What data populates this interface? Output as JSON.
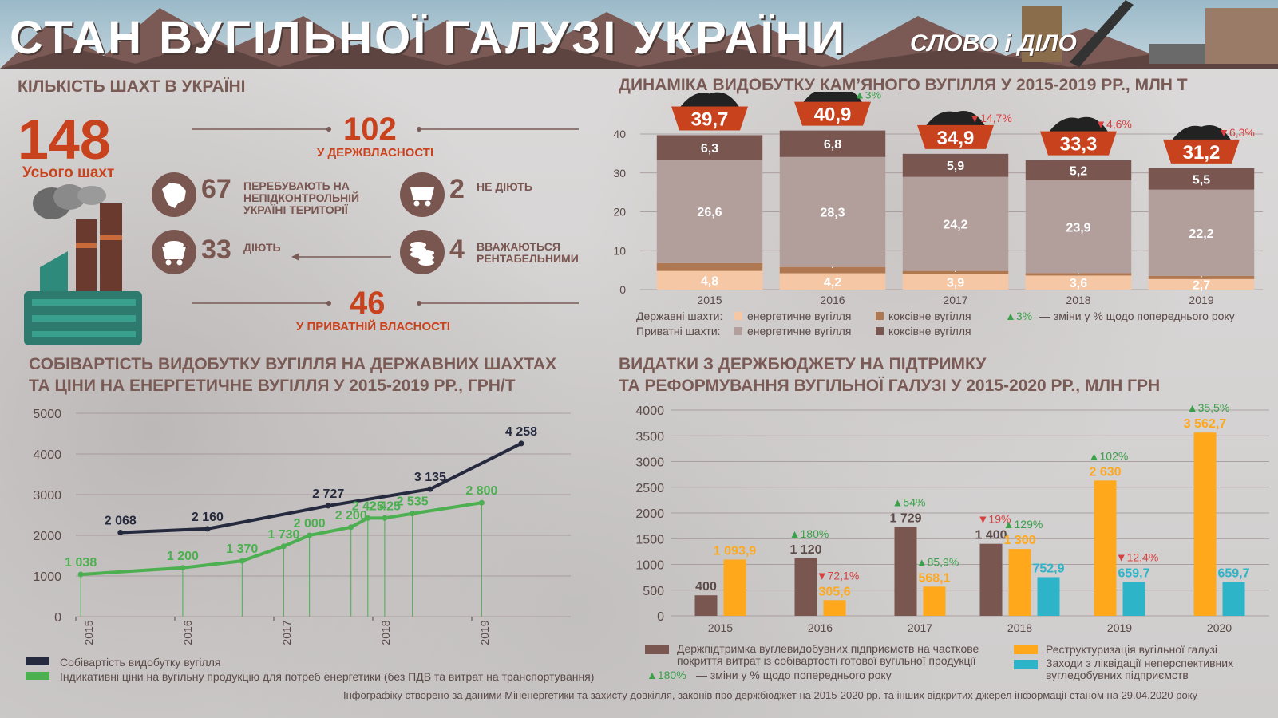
{
  "header": {
    "title": "СТАН ВУГІЛЬНОЇ ГАЛУЗІ УКРАЇНИ",
    "logo": "СЛОВО і ДІЛО"
  },
  "mines": {
    "section_title": "КІЛЬКІСТЬ ШАХТ В УКРАЇНІ",
    "total_value": "148",
    "total_label": "Усього шахт",
    "state_value": "102",
    "state_label": "У ДЕРЖВЛАСНОСТІ",
    "uncontrolled_value": "67",
    "uncontrolled_label": "ПЕРЕБУВАЮТЬ НА НЕПІДКОНТРОЛЬНІЙ УКРАЇНІ ТЕРИТОРІЇ",
    "inactive_value": "2",
    "inactive_label": "НЕ ДІЮТЬ",
    "active_value": "33",
    "active_label": "ДІЮТЬ",
    "profitable_value": "4",
    "profitable_label": "ВВАЖАЮТЬСЯ РЕНТАБЕЛЬНИМИ",
    "private_value": "46",
    "private_label": "У ПРИВАТНІЙ ВЛАСНОСТІ"
  },
  "production": {
    "section_title": "ДИНАМІКА ВИДОБУТКУ КАМ’ЯНОГО ВУГІЛЛЯ У 2015-2019 РР., МЛН Т",
    "legend": {
      "state_label": "Державні шахти:",
      "private_label": "Приватні шахти:",
      "energy": "енергетичне вугілля",
      "coking": "коксівне вугілля",
      "change_sample": "3%",
      "change_label": "— зміни у % щодо попереднього року"
    }
  },
  "cost": {
    "section_title_1": "СОБІВАРТІСТЬ ВИДОБУТКУ ВУГІЛЛЯ НА ДЕРЖАВНИХ ШАХТАХ",
    "section_title_2": "ТА ЦІНИ НА ЕНЕРГЕТИЧНЕ ВУГІЛЛЯ У 2015-2019 РР., ГРН/Т",
    "legend_cost": "Собівартість видобутку вугілля",
    "legend_price": "Індикативні ціни на вугільну продукцію для потреб енергетики (без ПДВ та витрат на транспортування)"
  },
  "budget": {
    "section_title_1": "ВИДАТКИ З ДЕРЖБЮДЖЕТУ НА ПІДТРИМКУ",
    "section_title_2": "ТА РЕФОРМУВАННЯ ВУГІЛЬНОЇ ГАЛУЗІ У 2015-2020 РР., МЛН ГРН",
    "legend_support": "Держпідтримка вуглевидобувних підприємств на часткове покриття витрат із собівартості готової вугільної продукції",
    "legend_restruct": "Реструктуризація вугільної галузі",
    "legend_liquid": "Заходи з ліквідації неперспективних вугледобувних підприємств",
    "change_sample": "180%",
    "change_label": "— зміни у % щодо попереднього року"
  },
  "footer": "Інфографіку створено за даними Міненергетики та захисту довкілля, законів про держбюджет на 2015-2020 рр. та інших відкритих джерел інформації станом на 29.04.2020 року",
  "colors": {
    "orange_red": "#c8421d",
    "brown_dark": "#7a5650",
    "taupe": "#b29f9c",
    "peach": "#f6c7a5",
    "tan": "#b07850",
    "navy": "#262a3e",
    "green": "#4caf50",
    "bud_brown": "#7a5650",
    "bud_orange": "#ffa81c",
    "bud_cyan": "#2db4c9",
    "up": "#3aa14a",
    "down": "#d84040"
  },
  "chart_data": [
    {
      "type": "bar",
      "stacked": true,
      "categories": [
        "2015",
        "2016",
        "2017",
        "2018",
        "2019"
      ],
      "ylim": [
        0,
        40
      ],
      "yticks": [
        0,
        10,
        20,
        30,
        40
      ],
      "series": [
        {
          "name": "Державні шахти: енергетичне вугілля",
          "values": [
            4.8,
            4.2,
            3.9,
            3.6,
            2.7
          ]
        },
        {
          "name": "Державні шахти: коксівне вугілля",
          "values": [
            2,
            1.6,
            0.9,
            0.6,
            0.8
          ]
        },
        {
          "name": "Приватні шахти: енергетичне вугілля",
          "values": [
            26.6,
            28.3,
            24.2,
            23.9,
            22.2
          ]
        },
        {
          "name": "Приватні шахти: коксівне вугілля",
          "values": [
            6.3,
            6.8,
            5.9,
            5.2,
            5.5
          ]
        }
      ],
      "labels": [
        [
          "4,8",
          "4,2",
          "3,9",
          "3,6",
          "2,7"
        ],
        [
          "2",
          "1,6",
          "0,9",
          "0,6",
          "0,8"
        ],
        [
          "26,6",
          "28,3",
          "24,2",
          "23,9",
          "22,2"
        ],
        [
          "6,3",
          "6,8",
          "5,9",
          "5,2",
          "5,5"
        ]
      ],
      "totals": [
        39.7,
        40.9,
        34.9,
        33.3,
        31.2
      ],
      "total_labels": [
        "39,7",
        "40,9",
        "34,9",
        "33,3",
        "31,2"
      ],
      "changes": [
        "",
        "3%",
        "14,7%",
        "4,6%",
        "6,3%"
      ],
      "change_dir": [
        "",
        "up",
        "down",
        "down",
        "down"
      ]
    },
    {
      "type": "line",
      "ylim": [
        0,
        5000
      ],
      "yticks": [
        0,
        1000,
        2000,
        3000,
        4000,
        5000
      ],
      "xticks": [
        "2015",
        "2016",
        "2017",
        "2018",
        "2019"
      ],
      "xlim": [
        2015,
        2020
      ],
      "series": [
        {
          "name": "Собівартість видобутку вугілля",
          "x": [
            2015.45,
            2016.33,
            2017.55,
            2018.58,
            2019.5
          ],
          "values": [
            2068,
            2160,
            2727,
            3135,
            4258
          ],
          "labels": [
            "2 068",
            "2 160",
            "2 727",
            "3 135",
            "4 258"
          ]
        },
        {
          "name": "Індикативні ціни на вугільну продукцію для потреб енергетики (без ПДВ та витрат на транспортування)",
          "x": [
            2015.05,
            2016.08,
            2016.68,
            2017.1,
            2017.36,
            2017.78,
            2017.95,
            2018.12,
            2018.4,
            2019.1
          ],
          "values": [
            1038,
            1200,
            1370,
            1730,
            2000,
            2200,
            2425,
            2425,
            2535,
            2800
          ],
          "labels": [
            "1 038",
            "1 200",
            "1 370",
            "1 730",
            "2 000",
            "2 200",
            "2 425",
            "2 425",
            "2 535",
            "2 800"
          ]
        }
      ]
    },
    {
      "type": "bar",
      "categories": [
        "2015",
        "2016",
        "2017",
        "2018",
        "2019",
        "2020"
      ],
      "ylim": [
        0,
        4000
      ],
      "yticks": [
        0,
        500,
        1000,
        1500,
        2000,
        2500,
        3000,
        3500,
        4000
      ],
      "series": [
        {
          "name": "Держпідтримка вуглевидобувних підприємств на часткове покриття витрат із собівартості готової вугільної продукції",
          "values": [
            400,
            1120,
            1729,
            1400,
            null,
            null
          ],
          "labels": [
            "400",
            "1 120",
            "1 729",
            "1 400",
            "",
            ""
          ],
          "changes": [
            "",
            "180%",
            "54%",
            "19%",
            "",
            ""
          ],
          "change_dir": [
            "",
            "up",
            "up",
            "down",
            "",
            ""
          ]
        },
        {
          "name": "Реструктуризація вугільної галузі",
          "values": [
            1093.9,
            305.6,
            568.1,
            1300,
            2630,
            3562.7
          ],
          "labels": [
            "1 093,9",
            "305,6",
            "568,1",
            "1 300",
            "2 630",
            "3 562,7"
          ],
          "changes": [
            "",
            "72,1%",
            "85,9%",
            "129%",
            "102%",
            "35,5%"
          ],
          "change_dir": [
            "",
            "down",
            "up",
            "up",
            "up",
            "up"
          ]
        },
        {
          "name": "Заходи з ліквідації неперспективних вугледобувних підприємств",
          "values": [
            null,
            null,
            null,
            752.9,
            659.7,
            659.7
          ],
          "labels": [
            "",
            "",
            "",
            "752,9",
            "659,7",
            "659,7"
          ],
          "changes": [
            "",
            "",
            "",
            "",
            "12,4%",
            ""
          ],
          "change_dir": [
            "",
            "",
            "",
            "",
            "down",
            ""
          ]
        }
      ]
    }
  ]
}
